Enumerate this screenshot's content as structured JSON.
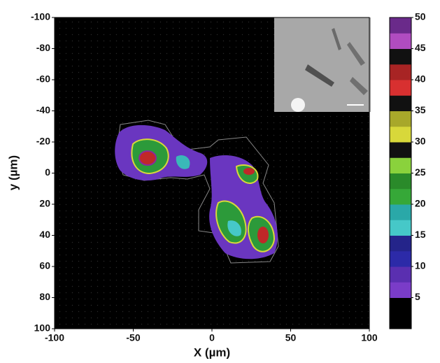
{
  "chart_data": {
    "type": "contour",
    "xlabel": "X (µm)",
    "ylabel": "y (µm)",
    "xlim": [
      -100,
      100
    ],
    "xticks": [
      -100,
      -50,
      0,
      50,
      100
    ],
    "ylim": [
      -100,
      100
    ],
    "yticks": [
      -100,
      -80,
      -60,
      -40,
      -20,
      0,
      20,
      40,
      60,
      80,
      100
    ],
    "y_inverted": true,
    "background": "#000000",
    "clim": [
      0,
      50
    ],
    "cticks": [
      5,
      10,
      15,
      20,
      25,
      30,
      35,
      40,
      45,
      50
    ],
    "colormap": [
      "#000000",
      "#000000",
      "#7a3cc8",
      "#5a2fb0",
      "#2c2aa8",
      "#24248a",
      "#46c8c8",
      "#2aa8a8",
      "#36a838",
      "#2a8a2a",
      "#8ad23c",
      "#111111",
      "#d8d83a",
      "#a8a82a",
      "#111111",
      "#d83030",
      "#a82424",
      "#111111",
      "#b04cc0",
      "#6a2a8a"
    ]
  }
}
